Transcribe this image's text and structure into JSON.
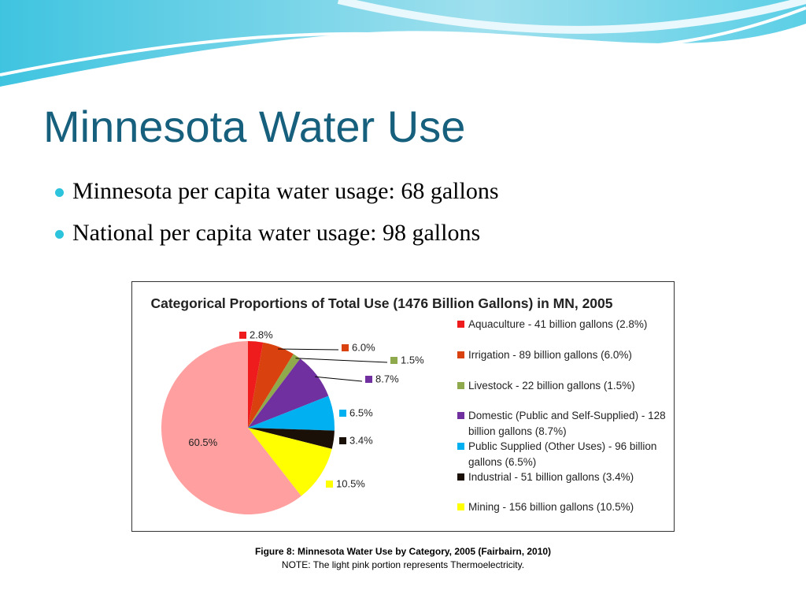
{
  "slide_title": "Minnesota Water Use",
  "bullets": [
    "Minnesota per capita water usage: 68 gallons",
    "National per capita water usage: 98 gallons"
  ],
  "chart_data": {
    "type": "pie",
    "title": "Categorical Proportions of Total Use (1476 Billion Gallons) in MN, 2005",
    "categories": [
      "Aquaculture - 41 billion gallons (2.8%)",
      "Irrigation - 89 billion gallons (6.0%)",
      "Livestock - 22 billion gallons (1.5%)",
      "Domestic (Public and Self-Supplied) - 128 billion gallons (8.7%)",
      "Public Supplied (Other Uses) - 96 billion gallons (6.5%)",
      "Industrial - 51 billion gallons (3.4%)",
      "Mining - 156 billion gallons (10.5%)",
      null
    ],
    "values": [
      2.8,
      6.0,
      1.5,
      8.7,
      6.5,
      3.4,
      10.5,
      60.5
    ],
    "value_labels": [
      "2.8%",
      "6.0%",
      "1.5%",
      "8.7%",
      "6.5%",
      "3.4%",
      "10.5%",
      "60.5%"
    ],
    "colors": [
      "#ee1c1c",
      "#d9410e",
      "#8faa4c",
      "#7030a0",
      "#00b0f0",
      "#1a1008",
      "#ffff00",
      "#ff9f9f"
    ]
  },
  "caption": [
    "Figure 8: Minnesota Water Use by Category, 2005 (Fairbairn, 2010)",
    "NOTE: The light pink portion represents Thermoelectricity."
  ]
}
